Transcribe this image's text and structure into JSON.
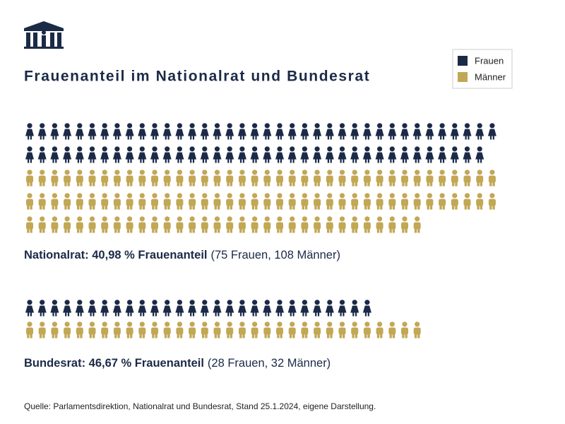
{
  "title": "Frauenanteil im Nationalrat und Bundesrat",
  "source": "Quelle: Parlamentsdirektion, Nationalrat und Bundesrat, Stand 25.1.2024, eigene Darstellung.",
  "chart_data": [
    {
      "type": "pictogram",
      "caption_bold": "Nationalrat: 40,98 % Frauenanteil",
      "caption_rest": "(75 Frauen, 108 Männer)",
      "series": [
        {
          "name": "Frauen",
          "color": "#1b2a47",
          "values": [
            75
          ]
        },
        {
          "name": "Männer",
          "color": "#c2a755",
          "values": [
            108
          ]
        }
      ]
    },
    {
      "type": "pictogram",
      "caption_bold": "Bundesrat: 46,67 % Frauenanteil",
      "caption_rest": "(28 Frauen, 32 Männer)",
      "series": [
        {
          "name": "Frauen",
          "color": "#1b2a47",
          "values": [
            28
          ]
        },
        {
          "name": "Männer",
          "color": "#c2a755",
          "values": [
            32
          ]
        }
      ]
    }
  ]
}
